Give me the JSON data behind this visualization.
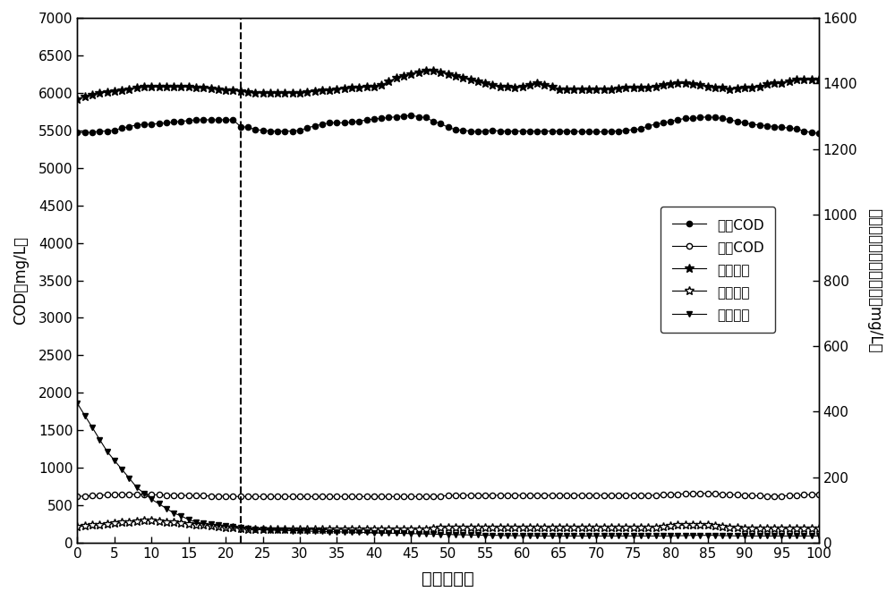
{
  "title": "",
  "xlabel": "时间（天）",
  "ylabel_left": "COD（mg/L）",
  "ylabel_right": "进出水氨氮和出水总氮（mg/L）",
  "xlim": [
    0,
    100
  ],
  "ylim_left": [
    0,
    7000
  ],
  "ylim_right": [
    0,
    1600
  ],
  "xticks": [
    0,
    5,
    10,
    15,
    20,
    25,
    30,
    35,
    40,
    45,
    50,
    55,
    60,
    65,
    70,
    75,
    80,
    85,
    90,
    95,
    100
  ],
  "yticks_left": [
    0,
    500,
    1000,
    1500,
    2000,
    2500,
    3000,
    3500,
    4000,
    4500,
    5000,
    5500,
    6000,
    6500,
    7000
  ],
  "yticks_right": [
    0,
    200,
    400,
    600,
    800,
    1000,
    1200,
    1400,
    1600
  ],
  "dashed_x": 22,
  "legend_labels": [
    "进水COD",
    "出水COD",
    "进水氨氮",
    "出水氨氮",
    "出水总氮"
  ],
  "series": {
    "influent_COD": {
      "x": [
        0,
        1,
        2,
        3,
        4,
        5,
        6,
        7,
        8,
        9,
        10,
        11,
        12,
        13,
        14,
        15,
        16,
        17,
        18,
        19,
        20,
        21,
        22,
        23,
        24,
        25,
        26,
        27,
        28,
        29,
        30,
        31,
        32,
        33,
        34,
        35,
        36,
        37,
        38,
        39,
        40,
        41,
        42,
        43,
        44,
        45,
        46,
        47,
        48,
        49,
        50,
        51,
        52,
        53,
        54,
        55,
        56,
        57,
        58,
        59,
        60,
        61,
        62,
        63,
        64,
        65,
        66,
        67,
        68,
        69,
        70,
        71,
        72,
        73,
        74,
        75,
        76,
        77,
        78,
        79,
        80,
        81,
        82,
        83,
        84,
        85,
        86,
        87,
        88,
        89,
        90,
        91,
        92,
        93,
        94,
        95,
        96,
        97,
        98,
        99,
        100
      ],
      "y": [
        5470,
        5470,
        5470,
        5490,
        5490,
        5500,
        5530,
        5550,
        5570,
        5580,
        5580,
        5590,
        5600,
        5610,
        5620,
        5630,
        5640,
        5640,
        5640,
        5640,
        5640,
        5640,
        5550,
        5540,
        5510,
        5500,
        5490,
        5490,
        5490,
        5490,
        5500,
        5530,
        5560,
        5580,
        5600,
        5600,
        5600,
        5610,
        5620,
        5640,
        5650,
        5660,
        5670,
        5680,
        5690,
        5700,
        5680,
        5670,
        5620,
        5590,
        5540,
        5510,
        5500,
        5490,
        5480,
        5490,
        5500,
        5490,
        5490,
        5490,
        5490,
        5490,
        5490,
        5490,
        5490,
        5490,
        5490,
        5490,
        5480,
        5480,
        5480,
        5480,
        5490,
        5490,
        5500,
        5510,
        5520,
        5560,
        5580,
        5600,
        5620,
        5640,
        5660,
        5660,
        5670,
        5680,
        5670,
        5660,
        5640,
        5620,
        5600,
        5580,
        5570,
        5560,
        5550,
        5540,
        5530,
        5520,
        5490,
        5470,
        5460
      ]
    },
    "effluent_COD": {
      "x": [
        0,
        1,
        2,
        3,
        4,
        5,
        6,
        7,
        8,
        9,
        10,
        11,
        12,
        13,
        14,
        15,
        16,
        17,
        18,
        19,
        20,
        21,
        22,
        23,
        24,
        25,
        26,
        27,
        28,
        29,
        30,
        31,
        32,
        33,
        34,
        35,
        36,
        37,
        38,
        39,
        40,
        41,
        42,
        43,
        44,
        45,
        46,
        47,
        48,
        49,
        50,
        51,
        52,
        53,
        54,
        55,
        56,
        57,
        58,
        59,
        60,
        61,
        62,
        63,
        64,
        65,
        66,
        67,
        68,
        69,
        70,
        71,
        72,
        73,
        74,
        75,
        76,
        77,
        78,
        79,
        80,
        81,
        82,
        83,
        84,
        85,
        86,
        87,
        88,
        89,
        90,
        91,
        92,
        93,
        94,
        95,
        96,
        97,
        98,
        99,
        100
      ],
      "y": [
        620,
        625,
        630,
        635,
        640,
        640,
        645,
        648,
        648,
        645,
        642,
        640,
        638,
        636,
        634,
        632,
        630,
        628,
        626,
        624,
        622,
        620,
        618,
        618,
        618,
        618,
        618,
        618,
        618,
        618,
        618,
        618,
        618,
        618,
        618,
        618,
        618,
        618,
        618,
        618,
        618,
        618,
        618,
        618,
        618,
        618,
        618,
        618,
        620,
        625,
        630,
        635,
        635,
        635,
        635,
        635,
        635,
        635,
        635,
        635,
        635,
        635,
        635,
        635,
        635,
        635,
        635,
        635,
        635,
        635,
        635,
        635,
        635,
        635,
        635,
        635,
        635,
        635,
        635,
        640,
        645,
        650,
        655,
        658,
        660,
        660,
        655,
        650,
        645,
        640,
        635,
        630,
        628,
        626,
        626,
        626,
        630,
        635,
        640,
        645,
        650
      ]
    },
    "influent_NH": {
      "x": [
        0,
        1,
        2,
        3,
        4,
        5,
        6,
        7,
        8,
        9,
        10,
        11,
        12,
        13,
        14,
        15,
        16,
        17,
        18,
        19,
        20,
        21,
        22,
        23,
        24,
        25,
        26,
        27,
        28,
        29,
        30,
        31,
        32,
        33,
        34,
        35,
        36,
        37,
        38,
        39,
        40,
        41,
        42,
        43,
        44,
        45,
        46,
        47,
        48,
        49,
        50,
        51,
        52,
        53,
        54,
        55,
        56,
        57,
        58,
        59,
        60,
        61,
        62,
        63,
        64,
        65,
        66,
        67,
        68,
        69,
        70,
        71,
        72,
        73,
        74,
        75,
        76,
        77,
        78,
        79,
        80,
        81,
        82,
        83,
        84,
        85,
        86,
        87,
        88,
        89,
        90,
        91,
        92,
        93,
        94,
        95,
        96,
        97,
        98,
        99,
        100
      ],
      "y": [
        1353,
        1360,
        1366,
        1371,
        1374,
        1377,
        1380,
        1383,
        1386,
        1389,
        1389,
        1389,
        1389,
        1389,
        1389,
        1389,
        1388,
        1386,
        1384,
        1382,
        1380,
        1378,
        1376,
        1374,
        1371,
        1371,
        1371,
        1371,
        1371,
        1371,
        1371,
        1374,
        1376,
        1378,
        1380,
        1382,
        1384,
        1386,
        1388,
        1389,
        1391,
        1394,
        1406,
        1417,
        1423,
        1429,
        1434,
        1440,
        1440,
        1434,
        1429,
        1423,
        1417,
        1411,
        1406,
        1400,
        1394,
        1389,
        1389,
        1386,
        1389,
        1394,
        1400,
        1394,
        1389,
        1383,
        1383,
        1383,
        1383,
        1383,
        1383,
        1383,
        1383,
        1384,
        1386,
        1388,
        1388,
        1388,
        1389,
        1394,
        1397,
        1400,
        1400,
        1397,
        1394,
        1391,
        1388,
        1386,
        1383,
        1384,
        1386,
        1388,
        1389,
        1397,
        1400,
        1400,
        1406,
        1411,
        1411,
        1411,
        1411
      ]
    },
    "effluent_NH": {
      "x": [
        0,
        1,
        2,
        3,
        4,
        5,
        6,
        7,
        8,
        9,
        10,
        11,
        12,
        13,
        14,
        15,
        16,
        17,
        18,
        19,
        20,
        21,
        22,
        23,
        24,
        25,
        26,
        27,
        28,
        29,
        30,
        31,
        32,
        33,
        34,
        35,
        36,
        37,
        38,
        39,
        40,
        41,
        42,
        43,
        44,
        45,
        46,
        47,
        48,
        49,
        50,
        51,
        52,
        53,
        54,
        55,
        56,
        57,
        58,
        59,
        60,
        61,
        62,
        63,
        64,
        65,
        66,
        67,
        68,
        69,
        70,
        71,
        72,
        73,
        74,
        75,
        76,
        77,
        78,
        79,
        80,
        81,
        82,
        83,
        84,
        85,
        86,
        87,
        88,
        89,
        90,
        91,
        92,
        93,
        94,
        95,
        96,
        97,
        98,
        99,
        100
      ],
      "y": [
        50,
        52,
        54,
        56,
        58,
        60,
        62,
        64,
        66,
        68,
        68,
        66,
        64,
        62,
        60,
        58,
        56,
        54,
        52,
        50,
        48,
        46,
        44,
        42,
        42,
        42,
        42,
        42,
        42,
        42,
        42,
        42,
        42,
        42,
        42,
        42,
        42,
        42,
        42,
        42,
        42,
        42,
        42,
        42,
        42,
        42,
        42,
        42,
        44,
        46,
        48,
        48,
        48,
        48,
        48,
        48,
        48,
        48,
        48,
        48,
        48,
        48,
        48,
        48,
        48,
        48,
        48,
        48,
        48,
        48,
        48,
        48,
        48,
        48,
        48,
        48,
        48,
        48,
        48,
        50,
        52,
        54,
        54,
        54,
        54,
        54,
        52,
        50,
        48,
        46,
        44,
        44,
        44,
        44,
        44,
        44,
        44,
        44,
        44,
        44,
        44
      ]
    },
    "effluent_TN": {
      "x": [
        0,
        1,
        2,
        3,
        4,
        5,
        6,
        7,
        8,
        9,
        10,
        11,
        12,
        13,
        14,
        15,
        16,
        17,
        18,
        19,
        20,
        21,
        22,
        23,
        24,
        25,
        26,
        27,
        28,
        29,
        30,
        31,
        32,
        33,
        34,
        35,
        36,
        37,
        38,
        39,
        40,
        41,
        42,
        43,
        44,
        45,
        46,
        47,
        48,
        49,
        50,
        51,
        52,
        53,
        54,
        55,
        56,
        57,
        58,
        59,
        60,
        61,
        62,
        63,
        64,
        65,
        66,
        67,
        68,
        69,
        70,
        71,
        72,
        73,
        74,
        75,
        76,
        77,
        78,
        79,
        80,
        81,
        82,
        83,
        84,
        85,
        86,
        87,
        88,
        89,
        90,
        91,
        92,
        93,
        94,
        95,
        96,
        97,
        98,
        99,
        100
      ],
      "y": [
        425,
        388,
        352,
        315,
        279,
        251,
        224,
        197,
        169,
        151,
        133,
        119,
        105,
        91,
        82,
        71,
        64,
        59,
        57,
        55,
        53,
        50,
        46,
        43,
        41,
        40,
        39,
        38,
        38,
        37,
        37,
        36,
        35,
        35,
        34,
        34,
        33,
        33,
        32,
        32,
        31,
        30,
        30,
        29,
        29,
        28,
        28,
        27,
        27,
        26,
        26,
        25,
        25,
        24,
        24,
        23,
        23,
        23,
        22,
        22,
        22,
        22,
        21,
        21,
        21,
        21,
        21,
        21,
        21,
        21,
        21,
        21,
        21,
        21,
        21,
        21,
        21,
        21,
        21,
        21,
        21,
        22,
        22,
        23,
        23,
        23,
        23,
        22,
        22,
        21,
        21,
        21,
        21,
        21,
        21,
        21,
        21,
        21,
        21,
        21,
        21
      ]
    }
  },
  "background_color": "#ffffff",
  "line_color": "#000000"
}
